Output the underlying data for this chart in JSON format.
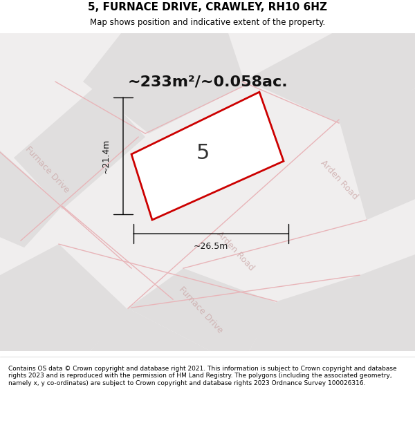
{
  "title": "5, FURNACE DRIVE, CRAWLEY, RH10 6HZ",
  "subtitle": "Map shows position and indicative extent of the property.",
  "area_text": "~233m²/~0.058ac.",
  "plot_number": "5",
  "dim_width": "~26.5m",
  "dim_height": "~21.4m",
  "bg_color": "#f0eeee",
  "map_bg": "#f0eeee",
  "road_block_color": "#e0dede",
  "road_line_color": "#e8b4b8",
  "plot_fill": "#ffffff",
  "plot_border": "#cc0000",
  "footer_text": "Contains OS data © Crown copyright and database right 2021. This information is subject to Crown copyright and database rights 2023 and is reproduced with the permission of HM Land Registry. The polygons (including the associated geometry, namely x, y co-ordinates) are subject to Crown copyright and database rights 2023 Ordnance Survey 100026316.",
  "street_label_furnace_upper": "Furnace Drive",
  "street_label_furnace_lower": "Furnace Drive",
  "street_label_arden": "Arden Road",
  "street_label_arden_lower": "Arden Road"
}
